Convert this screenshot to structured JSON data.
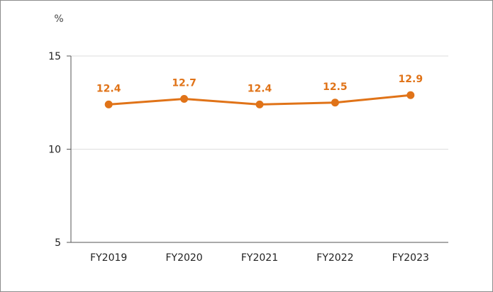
{
  "chart_data": {
    "type": "line",
    "title": "",
    "xlabel": "",
    "ylabel": "",
    "unit": "%",
    "categories": [
      "FY2019",
      "FY2020",
      "FY2021",
      "FY2022",
      "FY2023"
    ],
    "series": [
      {
        "values": [
          12.4,
          12.7,
          12.4,
          12.5,
          12.9
        ]
      }
    ],
    "data_labels": [
      "12.4",
      "12.7",
      "12.4",
      "12.5",
      "12.9"
    ],
    "ylim": [
      5,
      15
    ],
    "yticks": [
      5,
      10,
      15
    ],
    "ytick_labels": [
      "5",
      "10",
      "15"
    ],
    "grid": true,
    "legend": "none",
    "colors": {
      "series": "#e07318",
      "grid": "#dddddd",
      "axis": "#555555",
      "frame": "#8c8c8c"
    }
  }
}
